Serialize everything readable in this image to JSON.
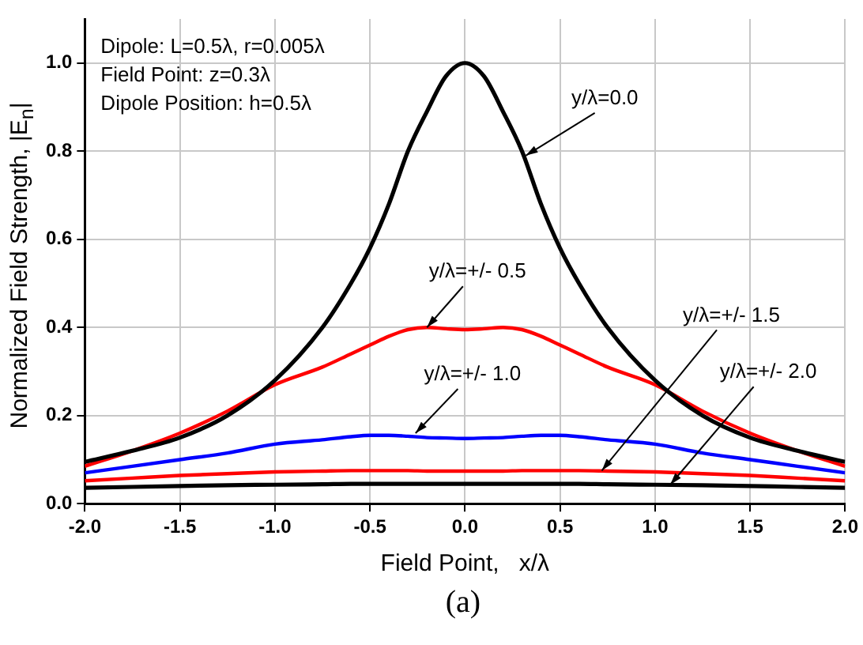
{
  "chart_data": {
    "type": "line",
    "xlabel": "Field Point,   x/λ",
    "ylabel": "Normalized Field Strength,   |E$_{n}$|",
    "x": [
      -2,
      -1.75,
      -1.5,
      -1.25,
      -1,
      -0.75,
      -0.6,
      -0.5,
      -0.4,
      -0.3,
      -0.2,
      -0.1,
      0,
      0.1,
      0.2,
      0.3,
      0.4,
      0.5,
      0.6,
      0.75,
      1,
      1.25,
      1.5,
      1.75,
      2
    ],
    "series": [
      {
        "color": "#000000",
        "values": [
          0.095,
          0.12,
          0.15,
          0.2,
          0.28,
          0.4,
          0.5,
          0.58,
          0.68,
          0.8,
          0.89,
          0.97,
          1.0,
          0.97,
          0.89,
          0.8,
          0.68,
          0.58,
          0.5,
          0.4,
          0.28,
          0.2,
          0.15,
          0.12,
          0.095
        ]
      },
      {
        "color": "#ff0000",
        "values": [
          0.085,
          0.12,
          0.16,
          0.21,
          0.27,
          0.31,
          0.34,
          0.36,
          0.38,
          0.395,
          0.4,
          0.397,
          0.395,
          0.397,
          0.4,
          0.395,
          0.38,
          0.36,
          0.34,
          0.31,
          0.27,
          0.21,
          0.16,
          0.12,
          0.085
        ]
      },
      {
        "color": "#0000ff",
        "values": [
          0.07,
          0.085,
          0.1,
          0.115,
          0.135,
          0.145,
          0.152,
          0.155,
          0.155,
          0.153,
          0.15,
          0.149,
          0.148,
          0.149,
          0.15,
          0.153,
          0.155,
          0.155,
          0.152,
          0.145,
          0.135,
          0.115,
          0.1,
          0.085,
          0.07
        ]
      },
      {
        "color": "#ff0000",
        "values": [
          0.052,
          0.058,
          0.064,
          0.068,
          0.072,
          0.074,
          0.075,
          0.075,
          0.075,
          0.075,
          0.074,
          0.074,
          0.074,
          0.074,
          0.074,
          0.075,
          0.075,
          0.075,
          0.075,
          0.074,
          0.072,
          0.068,
          0.064,
          0.058,
          0.052
        ]
      },
      {
        "color": "#000000",
        "values": [
          0.036,
          0.038,
          0.04,
          0.042,
          0.043,
          0.044,
          0.045,
          0.045,
          0.045,
          0.045,
          0.045,
          0.045,
          0.045,
          0.045,
          0.045,
          0.045,
          0.045,
          0.045,
          0.045,
          0.044,
          0.043,
          0.042,
          0.04,
          0.038,
          0.036
        ]
      }
    ],
    "xlim": [
      -2,
      2
    ],
    "ylim": [
      0,
      1.1
    ],
    "xticks": [
      {
        "value": -2,
        "label": "-2.0"
      },
      -1.5,
      {
        "value": -1,
        "label": "-1.0"
      },
      -0.5,
      {
        "value": 0,
        "label": "0.0"
      },
      0.5,
      {
        "value": 1,
        "label": "1.0"
      },
      1.5,
      {
        "value": 2,
        "label": "2.0"
      }
    ],
    "yticks": [
      {
        "value": 0,
        "label": "0.0"
      },
      0.2,
      0.4,
      0.6,
      0.8,
      {
        "value": 1,
        "label": "1.0"
      }
    ],
    "grid": true,
    "legend": false,
    "marker": "none",
    "line_style": "solid",
    "annotations": [
      "Dipole: L=0.5λ, r=0.005λ",
      "Field Point: z=0.3λ",
      "Dipole Position: h=0.5λ",
      {
        "text": "y/λ=0.0",
        "x": 0.32,
        "y": 0.79
      },
      {
        "text": "y/λ=+/- 0.5",
        "x": -0.2,
        "y": 0.4
      },
      {
        "text": "y/λ=+/- 1.0",
        "x": -0.26,
        "y": 0.16
      },
      {
        "text": "y/λ=+/- 1.5",
        "x": 0.72,
        "y": 0.075
      },
      {
        "text": "y/λ=+/- 2.0",
        "x": 1.08,
        "y": 0.043
      },
      "(a)"
    ]
  }
}
